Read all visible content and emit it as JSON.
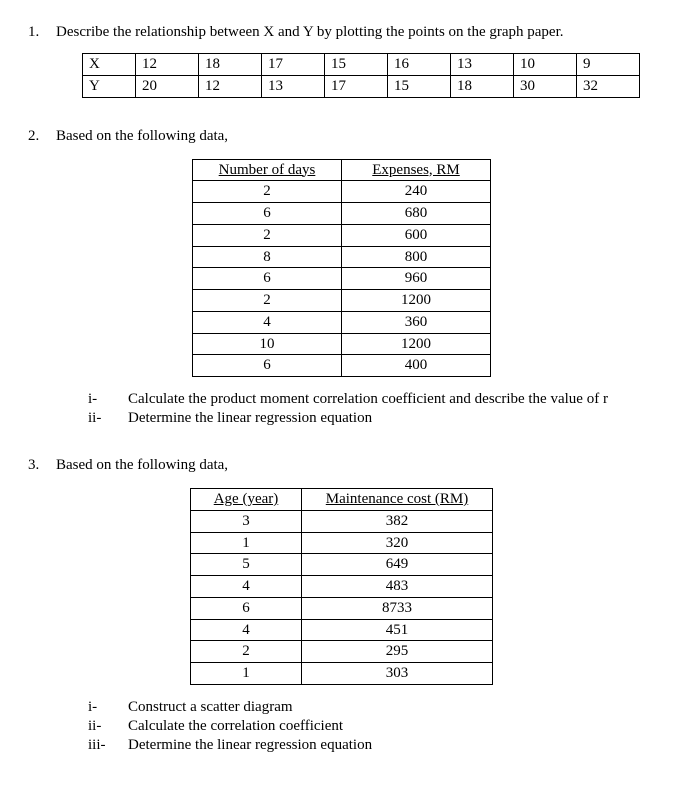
{
  "q1": {
    "number": "1.",
    "text": "Describe the relationship between X and Y by plotting the points on the graph paper.",
    "table": {
      "labels": [
        "X",
        "Y"
      ],
      "x": [
        "12",
        "18",
        "17",
        "15",
        "16",
        "13",
        "10",
        "9"
      ],
      "y": [
        "20",
        "12",
        "13",
        "17",
        "15",
        "18",
        "30",
        "32"
      ]
    }
  },
  "q2": {
    "number": "2.",
    "text": "Based on the following data,",
    "table": {
      "headers": [
        "Number of days",
        "Expenses, RM"
      ],
      "rows": [
        [
          "2",
          "240"
        ],
        [
          "6",
          "680"
        ],
        [
          "2",
          "600"
        ],
        [
          "8",
          "800"
        ],
        [
          "6",
          "960"
        ],
        [
          "2",
          "1200"
        ],
        [
          "4",
          "360"
        ],
        [
          "10",
          "1200"
        ],
        [
          "6",
          "400"
        ]
      ]
    },
    "subs": [
      {
        "r": "i-",
        "t": "Calculate the product moment correlation coefficient and describe the value of r"
      },
      {
        "r": "ii-",
        "t": "Determine the linear regression equation"
      }
    ]
  },
  "q3": {
    "number": "3.",
    "text": "Based on the following data,",
    "table": {
      "headers": [
        "Age (year)",
        "Maintenance cost (RM)"
      ],
      "rows": [
        [
          "3",
          "382"
        ],
        [
          "1",
          "320"
        ],
        [
          "5",
          "649"
        ],
        [
          "4",
          "483"
        ],
        [
          "6",
          "8733"
        ],
        [
          "4",
          "451"
        ],
        [
          "2",
          "295"
        ],
        [
          "1",
          "303"
        ]
      ]
    },
    "subs": [
      {
        "r": "i-",
        "t": "Construct a scatter diagram"
      },
      {
        "r": "ii-",
        "t": "Calculate the correlation coefficient"
      },
      {
        "r": "iii-",
        "t": "Determine the linear regression equation"
      }
    ]
  }
}
